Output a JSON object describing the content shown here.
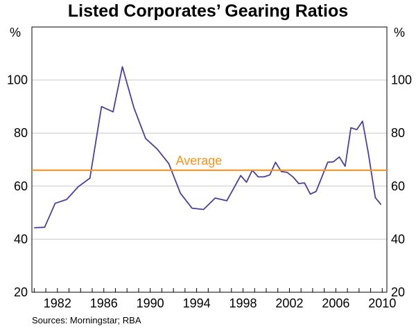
{
  "chart_data": {
    "type": "line",
    "title": "Listed Corporates’ Gearing Ratios",
    "ylabel_left": "%",
    "ylabel_right": "%",
    "xlabel": "",
    "ylim": [
      20,
      120
    ],
    "xlim": [
      1979.8,
      2010.4
    ],
    "yticks": [
      20,
      40,
      60,
      80,
      100
    ],
    "xticks": [
      "1982",
      "1986",
      "1990",
      "1994",
      "1998",
      "2002",
      "2006",
      "2010"
    ],
    "grid": true,
    "series": [
      {
        "name": "Gearing ratio",
        "color": "#4b3f9a",
        "x": [
          1980.0,
          1980.9,
          1981.8,
          1982.8,
          1983.8,
          1984.8,
          1985.8,
          1986.8,
          1987.6,
          1988.6,
          1989.6,
          1990.6,
          1991.6,
          1992.6,
          1993.6,
          1994.6,
          1995.6,
          1996.6,
          1997.3,
          1997.8,
          1998.3,
          1998.8,
          1999.3,
          1999.8,
          2000.3,
          2000.8,
          2001.3,
          2001.8,
          2002.3,
          2002.8,
          2003.3,
          2003.8,
          2004.3,
          2004.8,
          2005.3,
          2005.8,
          2006.3,
          2006.8,
          2007.3,
          2007.8,
          2008.3,
          2008.8,
          2009.4,
          2009.9
        ],
        "values": [
          44.3,
          44.5,
          53.5,
          55.0,
          59.8,
          63.0,
          90.0,
          88.0,
          105.0,
          89.5,
          78.0,
          74.0,
          68.5,
          57.3,
          51.7,
          51.2,
          55.5,
          54.5,
          60.0,
          64.0,
          61.5,
          66.0,
          63.5,
          63.5,
          64.2,
          69.0,
          65.5,
          65.2,
          63.5,
          61.0,
          61.2,
          57.0,
          58.0,
          63.5,
          69.0,
          69.2,
          71.0,
          67.5,
          82.0,
          81.3,
          84.5,
          72.5,
          55.7,
          53.0
        ]
      },
      {
        "name": "Average",
        "label": "Average",
        "color": "#f7941d",
        "x": [
          1979.8,
          2010.4
        ],
        "values": [
          66.0,
          66.0
        ]
      }
    ],
    "source": "Sources: Morningstar; RBA"
  }
}
